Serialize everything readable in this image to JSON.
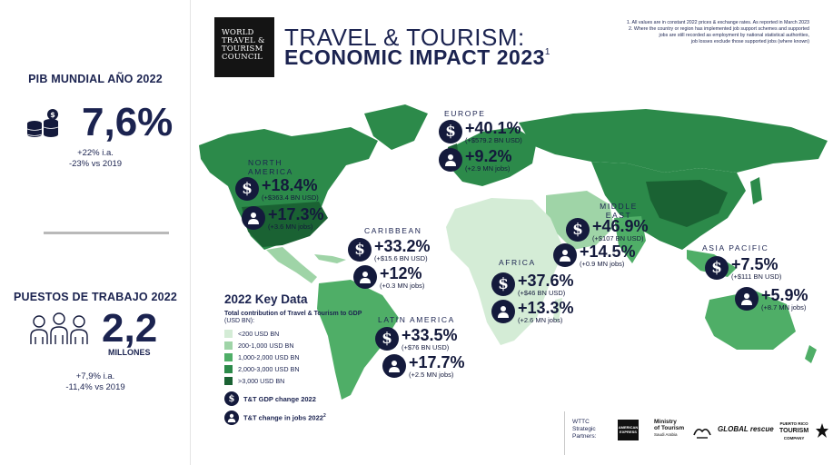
{
  "left_panel": {
    "gdp": {
      "title": "PIB MUNDIAL AÑO 2022",
      "value": "7,6%",
      "line1": "+22% i.a.",
      "line2": "-23% vs 2019"
    },
    "jobs": {
      "title": "PUESTOS DE TRABAJO 2022",
      "value": "2,2",
      "unit": "MILLONES",
      "line1": "+7,9% i.a.",
      "line2": "-11,4% vs 2019"
    }
  },
  "header": {
    "logo_lines": [
      "WORLD",
      "TRAVEL &",
      "TOURISM",
      "COUNCIL"
    ],
    "title_line1": "TRAVEL & TOURISM:",
    "title_line2": "ECONOMIC IMPACT 2023",
    "title_sup": "1",
    "notes": [
      "1. All values are in constant 2022 prices & exchange rates. As reported in March 2023",
      "2. Where the country or region has implemented job support schemes and supported",
      "jobs are still recorded as employment by national statistical authorities,",
      "job losses exclude those supported jobs (where known)"
    ]
  },
  "regions": {
    "north_america": {
      "label": "NORTH AMERICA",
      "gdp_change": "+18.4%",
      "gdp_detail": "(+$363.4 BN USD)",
      "jobs_change": "+17.3%",
      "jobs_detail": "(+3.6 MN jobs)"
    },
    "caribbean": {
      "label": "CARIBBEAN",
      "gdp_change": "+33.2%",
      "gdp_detail": "(+$15.6 BN USD)",
      "jobs_change": "+12%",
      "jobs_detail": "(+0.3 MN jobs)"
    },
    "latin_america": {
      "label": "LATIN AMERICA",
      "gdp_change": "+33.5%",
      "gdp_detail": "(+$76 BN USD)",
      "jobs_change": "+17.7%",
      "jobs_detail": "(+2.5 MN jobs)"
    },
    "europe": {
      "label": "EUROPE",
      "gdp_change": "+40.1%",
      "gdp_detail": "(+$579.2 BN USD)",
      "jobs_change": "+9.2%",
      "jobs_detail": "(+2.9 MN jobs)"
    },
    "africa": {
      "label": "AFRICA",
      "gdp_change": "+37.6%",
      "gdp_detail": "(+$46 BN USD)",
      "jobs_change": "+13.3%",
      "jobs_detail": "(+2.6 MN jobs)"
    },
    "middle_east": {
      "label": "MIDDLE EAST",
      "gdp_change": "+46.9%",
      "gdp_detail": "(+$107 BN USD)",
      "jobs_change": "+14.5%",
      "jobs_detail": "(+0.9 MN jobs)"
    },
    "asia_pacific": {
      "label": "ASIA PACIFIC",
      "gdp_change": "+7.5%",
      "gdp_detail": "(+$111 BN USD)",
      "jobs_change": "+5.9%",
      "jobs_detail": "(+8.7 MN jobs)"
    }
  },
  "legend": {
    "title": "2022 Key Data",
    "subtitle_bold": "Total contribution of Travel & Tourism to GDP",
    "subtitle_normal": "(USD BN):",
    "items": [
      {
        "label": "<200 USD BN",
        "color": "#d4ecd6"
      },
      {
        "label": "200-1,000 USD BN",
        "color": "#9fd4a7"
      },
      {
        "label": "1,000-2,000 USD BN",
        "color": "#4fae67"
      },
      {
        "label": "2,000-3,000 USD BN",
        "color": "#2c8a4a"
      },
      {
        "label": ">3,000 USD BN",
        "color": "#1a6233"
      }
    ],
    "gdp_icon_label": "T&T GDP change 2022",
    "jobs_icon_label": "T&T change in jobs 2022",
    "jobs_icon_sup": "2"
  },
  "partners": {
    "label_lines": [
      "WTTC",
      "Strategic",
      "Partners:"
    ],
    "amex": "AMERICAN EXPRESS",
    "mot_line1": "Ministry",
    "mot_line2": "of Tourism",
    "mot_line3": "Saudi Arabia",
    "global_rescue": "GLOBAL rescue",
    "prt_line1": "PUERTO RICO",
    "prt_line2": "TOURISM",
    "prt_line3": "COMPANY"
  },
  "colors": {
    "navy": "#1b2350",
    "icon": "#141a3c",
    "lightest": "#d4ecd6",
    "light": "#9fd4a7",
    "medium": "#4fae67",
    "dark": "#2c8a4a",
    "darkest": "#1a6233"
  }
}
